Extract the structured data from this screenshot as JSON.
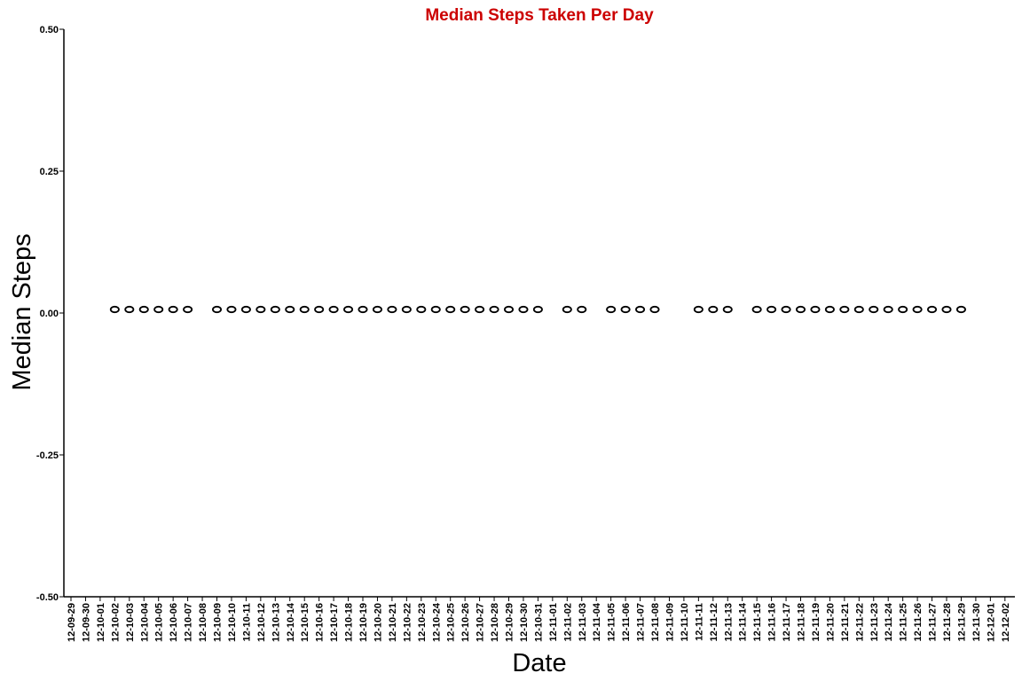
{
  "chart_data": {
    "type": "scatter",
    "title": "Median Steps Taken Per Day",
    "title_color": "#cc0000",
    "xlabel": "Date",
    "ylabel": "Median Steps",
    "ylim": [
      -0.5,
      0.5
    ],
    "yticks": [
      "0.50",
      "0.25",
      "0.00",
      "-0.25",
      "-0.50"
    ],
    "ytick_values": [
      0.5,
      0.25,
      0.0,
      -0.25,
      -0.5
    ],
    "xtick_labels": [
      "12-09-29",
      "12-09-30",
      "12-10-01",
      "12-10-02",
      "12-10-03",
      "12-10-04",
      "12-10-05",
      "12-10-06",
      "12-10-07",
      "12-10-08",
      "12-10-09",
      "12-10-10",
      "12-10-11",
      "12-10-12",
      "12-10-13",
      "12-10-14",
      "12-10-15",
      "12-10-16",
      "12-10-17",
      "12-10-18",
      "12-10-19",
      "12-10-20",
      "12-10-21",
      "12-10-22",
      "12-10-23",
      "12-10-24",
      "12-10-25",
      "12-10-26",
      "12-10-27",
      "12-10-28",
      "12-10-29",
      "12-10-30",
      "12-10-31",
      "12-11-01",
      "12-11-02",
      "12-11-03",
      "12-11-04",
      "12-11-05",
      "12-11-06",
      "12-11-07",
      "12-11-08",
      "12-11-09",
      "12-11-10",
      "12-11-11",
      "12-11-12",
      "12-11-13",
      "12-11-14",
      "12-11-15",
      "12-11-16",
      "12-11-17",
      "12-11-18",
      "12-11-19",
      "12-11-20",
      "12-11-21",
      "12-11-22",
      "12-11-23",
      "12-11-24",
      "12-11-25",
      "12-11-26",
      "12-11-27",
      "12-11-28",
      "12-11-29",
      "12-11-30",
      "12-12-01",
      "12-12-02"
    ],
    "points": [
      {
        "x": "12-10-02",
        "y": 0,
        "label": "0"
      },
      {
        "x": "12-10-03",
        "y": 0,
        "label": "0"
      },
      {
        "x": "12-10-04",
        "y": 0,
        "label": "0"
      },
      {
        "x": "12-10-05",
        "y": 0,
        "label": "0"
      },
      {
        "x": "12-10-06",
        "y": 0,
        "label": "0"
      },
      {
        "x": "12-10-07",
        "y": 0,
        "label": "0"
      },
      {
        "x": "12-10-09",
        "y": 0,
        "label": "0"
      },
      {
        "x": "12-10-10",
        "y": 0,
        "label": "0"
      },
      {
        "x": "12-10-11",
        "y": 0,
        "label": "0"
      },
      {
        "x": "12-10-12",
        "y": 0,
        "label": "0"
      },
      {
        "x": "12-10-13",
        "y": 0,
        "label": "0"
      },
      {
        "x": "12-10-14",
        "y": 0,
        "label": "0"
      },
      {
        "x": "12-10-15",
        "y": 0,
        "label": "0"
      },
      {
        "x": "12-10-16",
        "y": 0,
        "label": "0"
      },
      {
        "x": "12-10-17",
        "y": 0,
        "label": "0"
      },
      {
        "x": "12-10-18",
        "y": 0,
        "label": "0"
      },
      {
        "x": "12-10-19",
        "y": 0,
        "label": "0"
      },
      {
        "x": "12-10-20",
        "y": 0,
        "label": "0"
      },
      {
        "x": "12-10-21",
        "y": 0,
        "label": "0"
      },
      {
        "x": "12-10-22",
        "y": 0,
        "label": "0"
      },
      {
        "x": "12-10-23",
        "y": 0,
        "label": "0"
      },
      {
        "x": "12-10-24",
        "y": 0,
        "label": "0"
      },
      {
        "x": "12-10-25",
        "y": 0,
        "label": "0"
      },
      {
        "x": "12-10-26",
        "y": 0,
        "label": "0"
      },
      {
        "x": "12-10-27",
        "y": 0,
        "label": "0"
      },
      {
        "x": "12-10-28",
        "y": 0,
        "label": "0"
      },
      {
        "x": "12-10-29",
        "y": 0,
        "label": "0"
      },
      {
        "x": "12-10-30",
        "y": 0,
        "label": "0"
      },
      {
        "x": "12-10-31",
        "y": 0,
        "label": "0"
      },
      {
        "x": "12-11-02",
        "y": 0,
        "label": "0"
      },
      {
        "x": "12-11-03",
        "y": 0,
        "label": "0"
      },
      {
        "x": "12-11-05",
        "y": 0,
        "label": "0"
      },
      {
        "x": "12-11-06",
        "y": 0,
        "label": "0"
      },
      {
        "x": "12-11-07",
        "y": 0,
        "label": "0"
      },
      {
        "x": "12-11-08",
        "y": 0,
        "label": "0"
      },
      {
        "x": "12-11-11",
        "y": 0,
        "label": "0"
      },
      {
        "x": "12-11-12",
        "y": 0,
        "label": "0"
      },
      {
        "x": "12-11-13",
        "y": 0,
        "label": "0"
      },
      {
        "x": "12-11-15",
        "y": 0,
        "label": "0"
      },
      {
        "x": "12-11-16",
        "y": 0,
        "label": "0"
      },
      {
        "x": "12-11-17",
        "y": 0,
        "label": "0"
      },
      {
        "x": "12-11-18",
        "y": 0,
        "label": "0"
      },
      {
        "x": "12-11-19",
        "y": 0,
        "label": "0"
      },
      {
        "x": "12-11-20",
        "y": 0,
        "label": "0"
      },
      {
        "x": "12-11-21",
        "y": 0,
        "label": "0"
      },
      {
        "x": "12-11-22",
        "y": 0,
        "label": "0"
      },
      {
        "x": "12-11-23",
        "y": 0,
        "label": "0"
      },
      {
        "x": "12-11-24",
        "y": 0,
        "label": "0"
      },
      {
        "x": "12-11-25",
        "y": 0,
        "label": "0"
      },
      {
        "x": "12-11-26",
        "y": 0,
        "label": "0"
      },
      {
        "x": "12-11-27",
        "y": 0,
        "label": "0"
      },
      {
        "x": "12-11-28",
        "y": 0,
        "label": "0"
      },
      {
        "x": "12-11-29",
        "y": 0,
        "label": "0"
      }
    ],
    "grid": false,
    "legend": "none"
  }
}
